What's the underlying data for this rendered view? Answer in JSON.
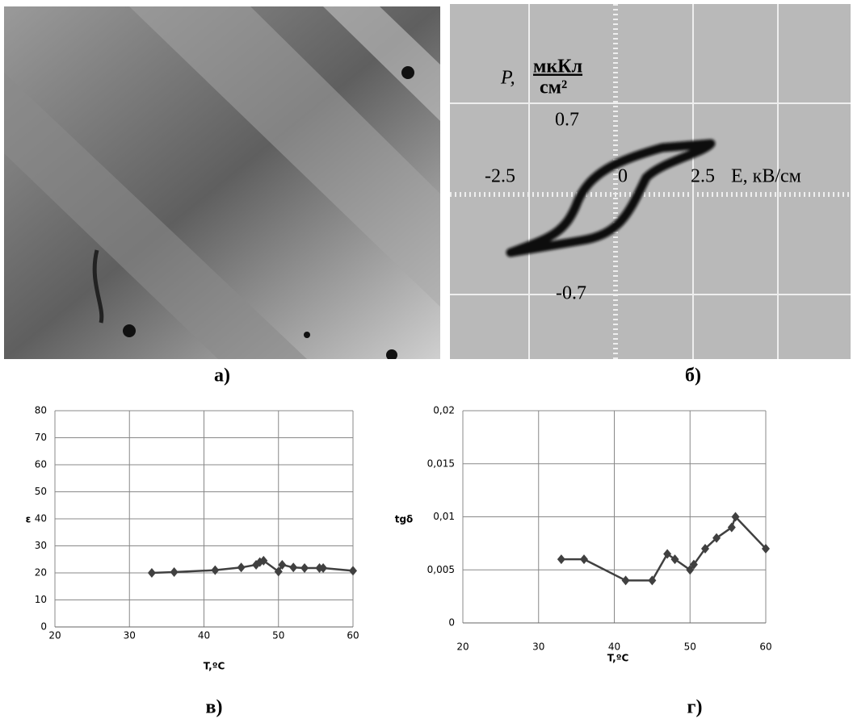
{
  "panels": {
    "a": {
      "label": "а)"
    },
    "b": {
      "label": "б)",
      "p_symbol": "P,",
      "p_unit_top": "мкКл",
      "p_unit_bottom": "см²",
      "y_pos": "0.7",
      "y_neg": "-0.7",
      "x_neg": "-2.5",
      "x_zero": "0",
      "x_pos": "2.5",
      "x_label": "E, кВ/см"
    },
    "c": {
      "label": "в)"
    },
    "d": {
      "label": "г)"
    }
  },
  "chart_data": [
    {
      "type": "line",
      "xlabel": "T,ºC",
      "ylabel": "ε",
      "color": "#404040",
      "grid": true,
      "x": [
        33,
        36,
        41.5,
        45,
        47,
        47.5,
        48,
        50,
        50.5,
        52,
        53.5,
        55.5,
        56,
        60
      ],
      "values": [
        20,
        20.3,
        21,
        22,
        23,
        24,
        24.5,
        20.5,
        23,
        22,
        21.8,
        21.8,
        21.8,
        20.8
      ],
      "xlim": [
        20,
        60
      ],
      "xticks": [
        20,
        30,
        40,
        50,
        60
      ],
      "ylim": [
        0,
        80
      ],
      "yticks": [
        0,
        10,
        20,
        30,
        40,
        50,
        60,
        70,
        80
      ]
    },
    {
      "type": "line",
      "xlabel": "T,ºC",
      "ylabel": "tgδ",
      "color": "#404040",
      "grid": true,
      "x": [
        33,
        36,
        41.5,
        45,
        47,
        48,
        50,
        50.5,
        52,
        53.5,
        55.5,
        56,
        60
      ],
      "values": [
        0.006,
        0.006,
        0.004,
        0.004,
        0.0065,
        0.006,
        0.005,
        0.0055,
        0.007,
        0.008,
        0.009,
        0.01,
        0.007
      ],
      "xlim": [
        20,
        60
      ],
      "xticks": [
        20,
        30,
        40,
        50,
        60
      ],
      "ylim": [
        0,
        0.02
      ],
      "yticks": [
        0,
        {
          "value": 0.005,
          "label": "0,005"
        },
        {
          "value": 0.01,
          "label": "0,01"
        },
        {
          "value": 0.015,
          "label": "0,015"
        },
        {
          "value": 0.02,
          "label": "0,02"
        }
      ]
    }
  ]
}
